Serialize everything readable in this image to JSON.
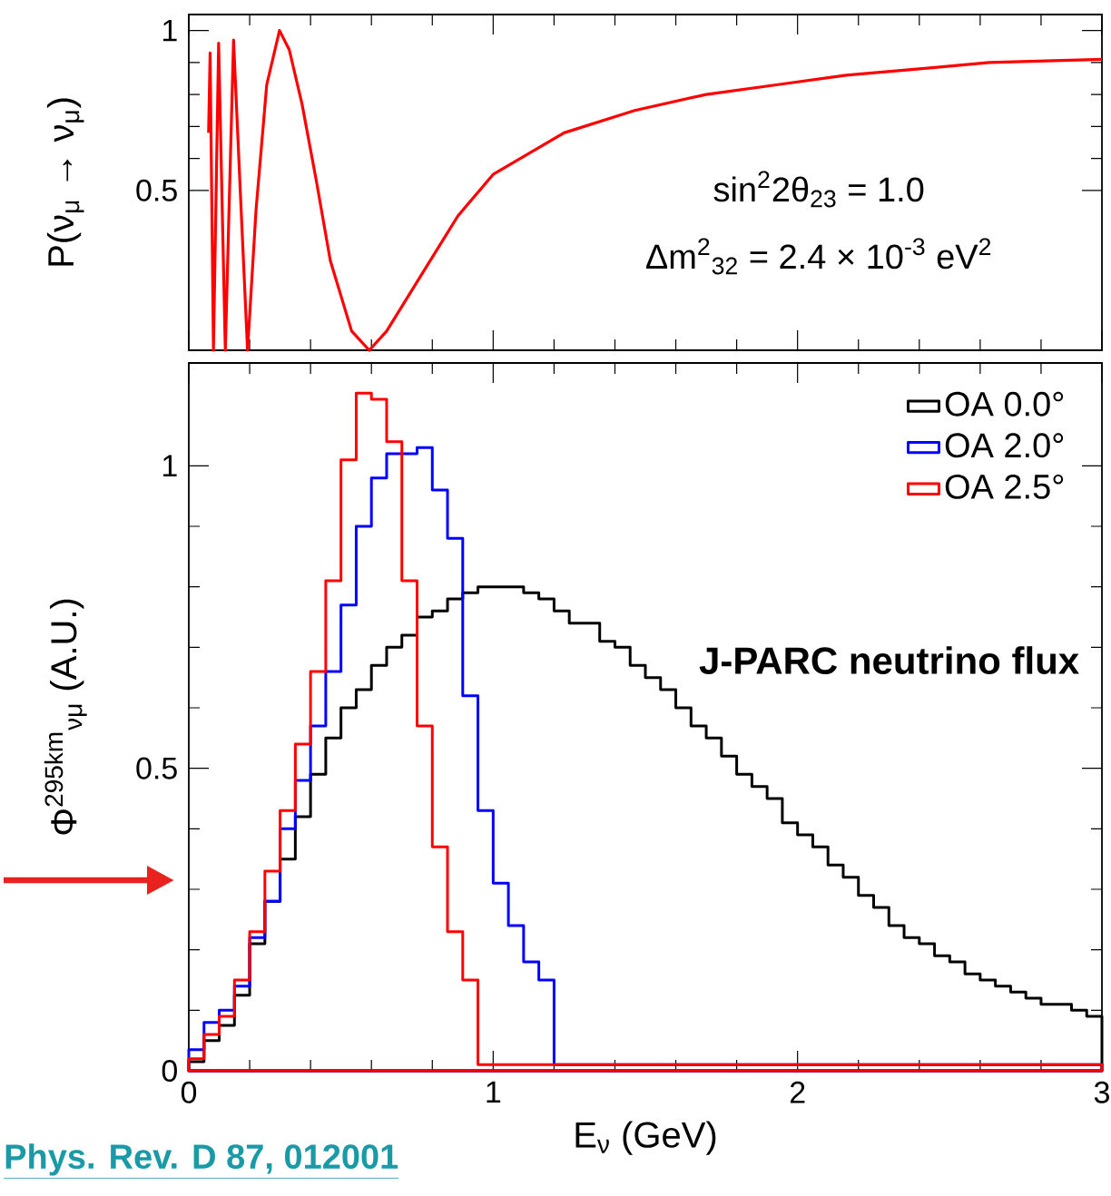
{
  "chart_data": [
    {
      "type": "line",
      "ylabel": "P(ν$_{μ}$ → ν$_{μ}$)",
      "x": [
        0.065,
        0.07,
        0.081,
        0.098,
        0.12,
        0.147,
        0.17,
        0.193,
        0.221,
        0.256,
        0.298,
        0.33,
        0.372,
        0.419,
        0.465,
        0.535,
        0.593,
        0.65,
        0.767,
        0.884,
        1.0,
        1.233,
        1.465,
        1.7,
        1.93,
        2.16,
        2.4,
        2.63,
        3.0
      ],
      "values": [
        0.68,
        0.93,
        0,
        0.96,
        0,
        0.97,
        0.48,
        0,
        0.44,
        0.83,
        1,
        0.94,
        0.77,
        0.53,
        0.28,
        0.06,
        0,
        0.06,
        0.24,
        0.42,
        0.55,
        0.68,
        0.75,
        0.8,
        0.83,
        0.86,
        0.88,
        0.9,
        0.91
      ],
      "color": "#ff0000",
      "xlim": [
        0,
        3
      ],
      "ylim": [
        0,
        1.05
      ],
      "xticks": [
        {
          "value": 0,
          "label": null
        },
        {
          "value": 1,
          "label": null
        },
        {
          "value": 2,
          "label": null
        },
        {
          "value": 3,
          "label": null
        }
      ],
      "yticks": [
        0.5,
        1
      ],
      "tick_labels": "y",
      "annotations": [
        "sin$^{2}$2θ$_{23}$ = 1.0",
        "Δm$^{2}$$_{32}$ = 2.4 × 10$^{-3}$ eV$^{2}$"
      ]
    },
    {
      "type": "histogram",
      "xlabel": "E$_{ν}$ (GeV)",
      "ylabel": "Φ$^{295km}$$_{νμ}$ (A.U.)",
      "bins": [
        0,
        0.05,
        0.1,
        0.15,
        0.2,
        0.25,
        0.3,
        0.35,
        0.4,
        0.45,
        0.5,
        0.55,
        0.6,
        0.65,
        0.7,
        0.75,
        0.8,
        0.85,
        0.9,
        0.95,
        1,
        1.05,
        1.1,
        1.15,
        1.2,
        1.25,
        1.3,
        1.35,
        1.4,
        1.45,
        1.5,
        1.55,
        1.6,
        1.65,
        1.7,
        1.75,
        1.8,
        1.85,
        1.9,
        1.95,
        2,
        2.05,
        2.1,
        2.15,
        2.2,
        2.25,
        2.3,
        2.35,
        2.4,
        2.45,
        2.5,
        2.55,
        2.6,
        2.65,
        2.7,
        2.75,
        2.8,
        2.85,
        2.9,
        2.95,
        3
      ],
      "series": [
        {
          "name": "OA 0.0°",
          "color": "#000000",
          "values": [
            0.015,
            0.05,
            0.075,
            0.125,
            0.21,
            0.28,
            0.35,
            0.42,
            0.49,
            0.55,
            0.6,
            0.63,
            0.67,
            0.7,
            0.72,
            0.75,
            0.76,
            0.78,
            0.79,
            0.8,
            0.8,
            0.8,
            0.79,
            0.78,
            0.76,
            0.74,
            0.74,
            0.71,
            0.7,
            0.67,
            0.65,
            0.63,
            0.6,
            0.57,
            0.55,
            0.52,
            0.49,
            0.47,
            0.45,
            0.41,
            0.39,
            0.37,
            0.34,
            0.32,
            0.29,
            0.27,
            0.24,
            0.22,
            0.21,
            0.19,
            0.18,
            0.16,
            0.15,
            0.14,
            0.13,
            0.12,
            0.11,
            0.11,
            0.1,
            0.09
          ]
        },
        {
          "name": "OA 2.0°",
          "color": "#0000ff",
          "values": [
            0.035,
            0.08,
            0.1,
            0.14,
            0.22,
            0.28,
            0.4,
            0.48,
            0.57,
            0.66,
            0.77,
            0.9,
            0.98,
            1.02,
            1.02,
            1.03,
            0.96,
            0.88,
            0.62,
            0.43,
            0.31,
            0.24,
            0.18,
            0.15,
            0.01,
            0.01,
            0.01,
            0.01,
            0.01,
            0.01,
            0.01,
            0.01,
            0.01,
            0.01,
            0.01,
            0.01,
            0.01,
            0.01,
            0.01,
            0.01,
            0.01,
            0.01,
            0.01,
            0.01,
            0.01,
            0.01,
            0.01,
            0.01,
            0.01,
            0.01,
            0.01,
            0.01,
            0.01,
            0.01,
            0.01,
            0.01,
            0.01,
            0.01,
            0.01,
            0.01
          ]
        },
        {
          "name": "OA 2.5°",
          "color": "#ff0000",
          "values": [
            0.02,
            0.06,
            0.09,
            0.15,
            0.23,
            0.33,
            0.43,
            0.54,
            0.66,
            0.81,
            1.01,
            1.12,
            1.11,
            1.04,
            0.81,
            0.57,
            0.37,
            0.23,
            0.15,
            0.01,
            0.01,
            0.01,
            0.01,
            0.01,
            0.01,
            0.01,
            0.01,
            0.01,
            0.01,
            0.01,
            0.01,
            0.01,
            0.01,
            0.01,
            0.01,
            0.01,
            0.01,
            0.01,
            0.01,
            0.01,
            0.01,
            0.01,
            0.01,
            0.01,
            0.01,
            0.01,
            0.01,
            0.01,
            0.01,
            0.01,
            0.01,
            0.01,
            0.01,
            0.01,
            0.01,
            0.01,
            0.01,
            0.01,
            0.01,
            0.01
          ]
        }
      ],
      "xlim": [
        0,
        3
      ],
      "ylim": [
        0,
        1.17
      ],
      "xticks": [
        0,
        1,
        2,
        3
      ],
      "yticks": [
        0,
        0.5,
        1
      ],
      "legend": "top right",
      "annotations": [
        "J-PARC neutrino flux",
        "Phys. Rev. D 87, 012001"
      ]
    }
  ]
}
